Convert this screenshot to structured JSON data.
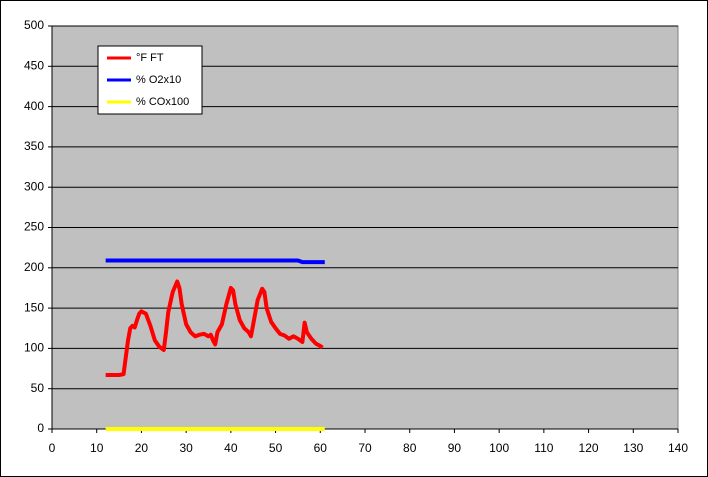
{
  "chart_data": {
    "type": "line",
    "xlim": [
      0,
      140
    ],
    "xticks": [
      0,
      10,
      20,
      30,
      40,
      50,
      60,
      70,
      80,
      90,
      100,
      110,
      120,
      130,
      140
    ],
    "ylim": [
      0,
      500
    ],
    "yticks": [
      0,
      50,
      100,
      150,
      200,
      250,
      300,
      350,
      400,
      450,
      500
    ],
    "grid": true,
    "legend": "top-left",
    "series": [
      {
        "name": "°F FT",
        "color": "#ff0000",
        "x": [
          12,
          13,
          14,
          15,
          16,
          17,
          17.5,
          18,
          18.5,
          19,
          19.5,
          20,
          21,
          22,
          23,
          24,
          25,
          25.5,
          26,
          27,
          28,
          28.5,
          29,
          30,
          31,
          32,
          33,
          34,
          35,
          35.5,
          36,
          36.5,
          37,
          38,
          39,
          40,
          40.5,
          41,
          42,
          43,
          44,
          44.5,
          45,
          46,
          47,
          47.5,
          48,
          49,
          50,
          51,
          52,
          53,
          54,
          55,
          55.5,
          56,
          56.5,
          57,
          58,
          59,
          60,
          60.5
        ],
        "values": [
          67,
          67,
          67,
          67,
          68,
          110,
          125,
          128,
          126,
          135,
          143,
          146,
          143,
          128,
          110,
          102,
          98,
          120,
          145,
          170,
          183,
          175,
          155,
          130,
          120,
          115,
          117,
          118,
          115,
          117,
          110,
          105,
          120,
          130,
          155,
          175,
          172,
          155,
          135,
          125,
          120,
          115,
          130,
          160,
          174,
          170,
          150,
          133,
          125,
          118,
          116,
          112,
          115,
          112,
          110,
          108,
          132,
          120,
          112,
          106,
          103,
          101
        ]
      },
      {
        "name": "% O2x10",
        "color": "#0000ff",
        "x": [
          12,
          55,
          56,
          61
        ],
        "values": [
          209,
          209,
          207,
          207
        ]
      },
      {
        "name": "% COx100",
        "color": "#ffff00",
        "x": [
          12,
          61
        ],
        "values": [
          0,
          0
        ]
      }
    ]
  }
}
